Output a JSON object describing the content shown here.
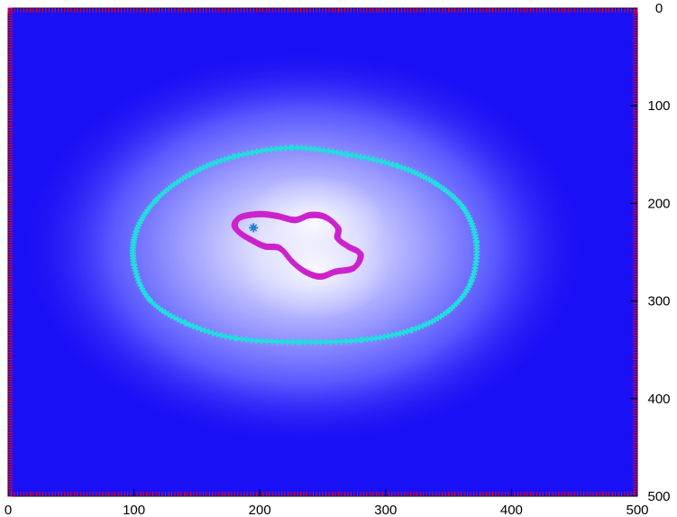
{
  "chart_data": {
    "type": "heatmap",
    "title": "",
    "xlabel": "",
    "ylabel": "",
    "xlim": [
      0,
      500
    ],
    "ylim": [
      0,
      500
    ],
    "y_inverted": true,
    "y_axis_side": "right",
    "x_ticks": [
      0,
      100,
      200,
      300,
      400,
      500
    ],
    "y_ticks": [
      0,
      100,
      200,
      300,
      400,
      500
    ],
    "grid": false,
    "colormap": [
      "#2020f0",
      "#ffffff"
    ],
    "field": {
      "description_free": true,
      "peaks": [
        {
          "x": 243,
          "y": 222,
          "amplitude": 1.0
        },
        {
          "x": 245,
          "y": 268,
          "amplitude": 0.9
        }
      ],
      "background_level": 0.0
    },
    "series": [
      {
        "color": "#22dddd",
        "marker": "plus",
        "kind": "contour",
        "points": [
          [
            226,
            143
          ],
          [
            270,
            150
          ],
          [
            310,
            162
          ],
          [
            340,
            180
          ],
          [
            362,
            205
          ],
          [
            372,
            240
          ],
          [
            368,
            280
          ],
          [
            350,
            310
          ],
          [
            320,
            330
          ],
          [
            280,
            340
          ],
          [
            230,
            342
          ],
          [
            180,
            338
          ],
          [
            140,
            322
          ],
          [
            112,
            298
          ],
          [
            100,
            262
          ],
          [
            102,
            228
          ],
          [
            118,
            196
          ],
          [
            145,
            170
          ],
          [
            180,
            152
          ]
        ]
      },
      {
        "color": "#cc22cc",
        "marker": "plus",
        "kind": "contour",
        "points": [
          [
            200,
            211
          ],
          [
            214,
            213
          ],
          [
            228,
            217
          ],
          [
            240,
            212
          ],
          [
            252,
            214
          ],
          [
            262,
            225
          ],
          [
            262,
            236
          ],
          [
            270,
            244
          ],
          [
            280,
            252
          ],
          [
            275,
            266
          ],
          [
            260,
            270
          ],
          [
            248,
            275
          ],
          [
            236,
            270
          ],
          [
            226,
            260
          ],
          [
            216,
            246
          ],
          [
            204,
            244
          ],
          [
            194,
            238
          ],
          [
            184,
            230
          ],
          [
            180,
            222
          ],
          [
            185,
            214
          ]
        ]
      },
      {
        "color": "#1f7fd0",
        "marker": "asterisk",
        "kind": "point",
        "points": [
          [
            195,
            225
          ]
        ]
      }
    ]
  },
  "colors": {
    "frame": "#000000",
    "edge_ticks": "#ff0000",
    "background": "#1a10f5"
  }
}
